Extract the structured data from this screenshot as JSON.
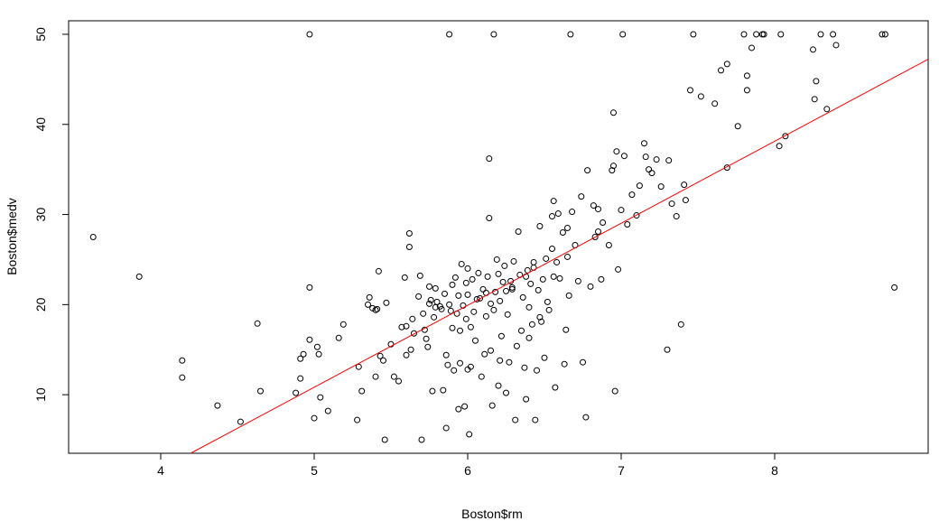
{
  "chart_data": {
    "type": "scatter",
    "xlabel": "Boston$rm",
    "ylabel": "Boston$medv",
    "xlim": [
      3.4,
      9.0
    ],
    "ylim": [
      3.5,
      51.5
    ],
    "xticks": [
      4,
      5,
      6,
      7,
      8
    ],
    "yticks": [
      10,
      20,
      30,
      40,
      50
    ],
    "grid": false,
    "point_color": "#000000",
    "fit_line": {
      "color": "#ff0000",
      "intercept": -34.67,
      "slope": 9.1
    },
    "points": [
      [
        3.56,
        27.5
      ],
      [
        3.86,
        23.1
      ],
      [
        4.14,
        13.8
      ],
      [
        4.14,
        11.9
      ],
      [
        4.37,
        8.8
      ],
      [
        4.52,
        7.0
      ],
      [
        4.63,
        17.9
      ],
      [
        4.65,
        10.4
      ],
      [
        4.88,
        10.2
      ],
      [
        4.91,
        11.8
      ],
      [
        4.91,
        14.0
      ],
      [
        4.93,
        14.5
      ],
      [
        4.97,
        50.0
      ],
      [
        4.97,
        21.9
      ],
      [
        4.97,
        16.1
      ],
      [
        5.0,
        7.4
      ],
      [
        5.02,
        15.3
      ],
      [
        5.03,
        14.5
      ],
      [
        5.04,
        9.7
      ],
      [
        5.09,
        8.2
      ],
      [
        5.16,
        16.3
      ],
      [
        5.19,
        17.8
      ],
      [
        5.28,
        7.2
      ],
      [
        5.29,
        13.1
      ],
      [
        5.31,
        10.4
      ],
      [
        5.35,
        20.0
      ],
      [
        5.36,
        20.8
      ],
      [
        5.38,
        19.6
      ],
      [
        5.4,
        12.0
      ],
      [
        5.41,
        19.5
      ],
      [
        5.42,
        23.7
      ],
      [
        5.43,
        14.3
      ],
      [
        5.45,
        13.8
      ],
      [
        5.46,
        5.0
      ],
      [
        5.47,
        20.2
      ],
      [
        5.5,
        15.6
      ],
      [
        5.52,
        12.0
      ],
      [
        5.55,
        11.5
      ],
      [
        5.57,
        17.5
      ],
      [
        5.59,
        23.0
      ],
      [
        5.6,
        17.6
      ],
      [
        5.62,
        27.9
      ],
      [
        5.62,
        26.4
      ],
      [
        5.63,
        15.0
      ],
      [
        5.64,
        18.4
      ],
      [
        5.65,
        16.8
      ],
      [
        5.68,
        20.9
      ],
      [
        5.69,
        23.2
      ],
      [
        5.7,
        5.0
      ],
      [
        5.71,
        19.0
      ],
      [
        5.72,
        17.2
      ],
      [
        5.73,
        16.2
      ],
      [
        5.74,
        15.3
      ],
      [
        5.75,
        22.0
      ],
      [
        5.76,
        20.5
      ],
      [
        5.77,
        10.4
      ],
      [
        5.78,
        18.6
      ],
      [
        5.79,
        19.7
      ],
      [
        5.8,
        20.3
      ],
      [
        5.82,
        19.8
      ],
      [
        5.83,
        19.5
      ],
      [
        5.84,
        10.5
      ],
      [
        5.85,
        21.2
      ],
      [
        5.86,
        6.3
      ],
      [
        5.87,
        13.3
      ],
      [
        5.88,
        20.0
      ],
      [
        5.88,
        50.0
      ],
      [
        5.89,
        19.3
      ],
      [
        5.9,
        22.2
      ],
      [
        5.9,
        17.4
      ],
      [
        5.91,
        12.7
      ],
      [
        5.92,
        23.0
      ],
      [
        5.93,
        19.0
      ],
      [
        5.94,
        8.4
      ],
      [
        5.94,
        21.0
      ],
      [
        5.95,
        13.5
      ],
      [
        5.96,
        24.5
      ],
      [
        5.97,
        19.9
      ],
      [
        5.98,
        8.7
      ],
      [
        5.99,
        18.4
      ],
      [
        6.0,
        12.8
      ],
      [
        6.0,
        24.0
      ],
      [
        6.01,
        5.6
      ],
      [
        6.02,
        13.1
      ],
      [
        6.03,
        22.8
      ],
      [
        6.04,
        19.2
      ],
      [
        6.05,
        16.0
      ],
      [
        6.06,
        20.6
      ],
      [
        6.07,
        23.5
      ],
      [
        6.08,
        20.7
      ],
      [
        6.09,
        12.0
      ],
      [
        6.1,
        21.7
      ],
      [
        6.11,
        14.5
      ],
      [
        6.12,
        18.7
      ],
      [
        6.13,
        23.1
      ],
      [
        6.14,
        36.2
      ],
      [
        6.14,
        29.6
      ],
      [
        6.15,
        20.1
      ],
      [
        6.16,
        8.8
      ],
      [
        6.17,
        19.4
      ],
      [
        6.17,
        50.0
      ],
      [
        6.18,
        21.4
      ],
      [
        6.19,
        25.0
      ],
      [
        6.2,
        11.0
      ],
      [
        6.21,
        20.4
      ],
      [
        6.22,
        16.5
      ],
      [
        6.23,
        22.5
      ],
      [
        6.24,
        24.3
      ],
      [
        6.25,
        10.2
      ],
      [
        6.26,
        18.9
      ],
      [
        6.27,
        13.6
      ],
      [
        6.28,
        22.6
      ],
      [
        6.29,
        21.7
      ],
      [
        6.3,
        24.8
      ],
      [
        6.31,
        7.2
      ],
      [
        6.32,
        15.4
      ],
      [
        6.33,
        28.1
      ],
      [
        6.34,
        23.3
      ],
      [
        6.35,
        17.1
      ],
      [
        6.36,
        20.8
      ],
      [
        6.37,
        13.0
      ],
      [
        6.38,
        9.5
      ],
      [
        6.39,
        23.8
      ],
      [
        6.4,
        19.7
      ],
      [
        6.41,
        22.3
      ],
      [
        6.42,
        17.8
      ],
      [
        6.43,
        24.7
      ],
      [
        6.44,
        7.2
      ],
      [
        6.45,
        12.7
      ],
      [
        6.46,
        21.6
      ],
      [
        6.47,
        28.7
      ],
      [
        6.48,
        18.1
      ],
      [
        6.49,
        22.8
      ],
      [
        6.5,
        14.1
      ],
      [
        6.51,
        25.1
      ],
      [
        6.52,
        20.3
      ],
      [
        6.53,
        19.4
      ],
      [
        6.55,
        26.2
      ],
      [
        6.56,
        31.5
      ],
      [
        6.57,
        10.8
      ],
      [
        6.58,
        24.7
      ],
      [
        6.59,
        30.1
      ],
      [
        6.6,
        22.9
      ],
      [
        6.62,
        28.0
      ],
      [
        6.63,
        13.4
      ],
      [
        6.64,
        17.2
      ],
      [
        6.65,
        25.3
      ],
      [
        6.66,
        21.0
      ],
      [
        6.67,
        50.0
      ],
      [
        6.68,
        30.3
      ],
      [
        6.7,
        26.6
      ],
      [
        6.72,
        22.6
      ],
      [
        6.74,
        32.0
      ],
      [
        6.75,
        13.6
      ],
      [
        6.77,
        7.5
      ],
      [
        6.78,
        34.9
      ],
      [
        6.8,
        22.0
      ],
      [
        6.82,
        31.0
      ],
      [
        6.83,
        27.5
      ],
      [
        6.85,
        28.1
      ],
      [
        6.87,
        22.8
      ],
      [
        6.88,
        29.1
      ],
      [
        6.92,
        26.6
      ],
      [
        6.94,
        34.9
      ],
      [
        6.95,
        41.3
      ],
      [
        6.96,
        10.4
      ],
      [
        6.97,
        37.0
      ],
      [
        6.98,
        23.9
      ],
      [
        7.0,
        30.5
      ],
      [
        7.01,
        50.0
      ],
      [
        7.02,
        36.5
      ],
      [
        7.04,
        28.9
      ],
      [
        7.07,
        32.2
      ],
      [
        7.1,
        29.9
      ],
      [
        7.12,
        33.2
      ],
      [
        7.15,
        37.9
      ],
      [
        7.16,
        36.4
      ],
      [
        7.18,
        35.0
      ],
      [
        7.2,
        34.6
      ],
      [
        7.23,
        36.1
      ],
      [
        7.26,
        33.1
      ],
      [
        7.3,
        15.0
      ],
      [
        7.31,
        36.0
      ],
      [
        7.33,
        31.2
      ],
      [
        7.36,
        29.8
      ],
      [
        7.39,
        17.8
      ],
      [
        7.41,
        33.3
      ],
      [
        7.42,
        31.6
      ],
      [
        7.45,
        43.8
      ],
      [
        7.47,
        50.0
      ],
      [
        7.52,
        43.1
      ],
      [
        7.61,
        42.3
      ],
      [
        7.65,
        46.0
      ],
      [
        7.69,
        35.2
      ],
      [
        7.69,
        46.7
      ],
      [
        7.76,
        39.8
      ],
      [
        7.8,
        50.0
      ],
      [
        7.82,
        45.4
      ],
      [
        7.82,
        43.8
      ],
      [
        7.85,
        48.5
      ],
      [
        7.88,
        50.0
      ],
      [
        7.92,
        50.0
      ],
      [
        7.93,
        50.0
      ],
      [
        8.03,
        37.6
      ],
      [
        8.04,
        50.0
      ],
      [
        8.07,
        38.7
      ],
      [
        8.25,
        48.3
      ],
      [
        8.26,
        42.8
      ],
      [
        8.27,
        44.8
      ],
      [
        8.3,
        50.0
      ],
      [
        8.34,
        41.7
      ],
      [
        8.38,
        50.0
      ],
      [
        8.4,
        48.8
      ],
      [
        8.7,
        50.0
      ],
      [
        8.72,
        50.0
      ],
      [
        8.78,
        21.9
      ],
      [
        5.4,
        19.4
      ],
      [
        5.6,
        14.4
      ],
      [
        5.86,
        14.4
      ],
      [
        6.02,
        17.5
      ],
      [
        6.15,
        14.9
      ],
      [
        6.25,
        21.5
      ],
      [
        6.38,
        23.1
      ],
      [
        6.56,
        23.1
      ],
      [
        5.79,
        21.8
      ],
      [
        5.99,
        22.4
      ],
      [
        6.12,
        21.3
      ],
      [
        6.29,
        21.9
      ],
      [
        6.43,
        24.1
      ],
      [
        6.0,
        21.1
      ],
      [
        6.2,
        23.4
      ],
      [
        5.75,
        20.1
      ],
      [
        6.4,
        16.3
      ],
      [
        6.47,
        18.6
      ],
      [
        6.21,
        13.8
      ],
      [
        5.95,
        17.1
      ],
      [
        6.55,
        29.8
      ],
      [
        6.65,
        28.5
      ],
      [
        6.85,
        30.6
      ],
      [
        6.95,
        35.4
      ]
    ]
  }
}
